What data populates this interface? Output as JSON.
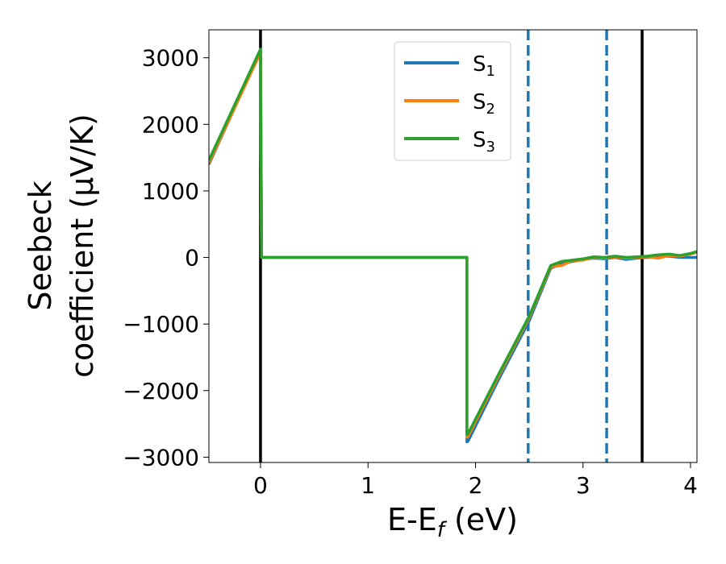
{
  "chart_data": {
    "type": "line",
    "xlabel": {
      "prefix": "E-E",
      "subscript": "f",
      "suffix": " (eV)"
    },
    "ylabel": {
      "line1": "Seebeck",
      "line2": "coefficient  (μV/K)"
    },
    "xlim": [
      -0.48,
      4.06
    ],
    "ylim": [
      -3080,
      3420
    ],
    "xticks": [
      0,
      1,
      2,
      3,
      4
    ],
    "yticks": [
      3000,
      2000,
      1000,
      0,
      -1000,
      -2000,
      -3000
    ],
    "ytick_labels": [
      "3000",
      "2000",
      "1000",
      "0",
      "−1000",
      "−2000",
      "−3000"
    ],
    "grid": false,
    "legend": {
      "position": "top-right",
      "entries": [
        {
          "base": "S",
          "sub": "1",
          "color": "#1f77b4"
        },
        {
          "base": "S",
          "sub": "2",
          "color": "#ff7f0e"
        },
        {
          "base": "S",
          "sub": "3",
          "color": "#2ca02c"
        }
      ]
    },
    "series": [
      {
        "name": "S1",
        "color": "#1f77b4",
        "x": [
          -0.48,
          0.0,
          0.01,
          0.02,
          1.92,
          1.92,
          1.93,
          2.2,
          2.5,
          2.7,
          2.8,
          2.9,
          3.0,
          3.1,
          3.2,
          3.3,
          3.4,
          3.5,
          3.6,
          3.7,
          3.8,
          3.9,
          4.0,
          4.06
        ],
        "y": [
          1400,
          3100,
          0,
          0,
          0,
          -2770,
          -2760,
          -1880,
          -950,
          -160,
          -100,
          -60,
          -30,
          -10,
          -20,
          0,
          -30,
          -10,
          0,
          10,
          20,
          0,
          0,
          0
        ]
      },
      {
        "name": "S2",
        "color": "#ff7f0e",
        "x": [
          -0.48,
          0.0,
          0.01,
          0.02,
          1.92,
          1.92,
          1.93,
          2.2,
          2.5,
          2.7,
          2.8,
          2.9,
          3.0,
          3.1,
          3.2,
          3.3,
          3.4,
          3.5,
          3.6,
          3.7,
          3.8,
          3.9,
          4.0,
          4.06
        ],
        "y": [
          1420,
          3080,
          0,
          0,
          0,
          -2700,
          -2690,
          -1830,
          -900,
          -140,
          -120,
          -50,
          -40,
          0,
          -10,
          10,
          -10,
          0,
          10,
          -10,
          30,
          20,
          50,
          80
        ]
      },
      {
        "name": "S3",
        "color": "#2ca02c",
        "x": [
          -0.48,
          0.0,
          0.01,
          0.02,
          1.92,
          1.92,
          1.93,
          2.2,
          2.5,
          2.7,
          2.8,
          2.9,
          3.0,
          3.1,
          3.2,
          3.3,
          3.4,
          3.5,
          3.6,
          3.7,
          3.8,
          3.9,
          4.0,
          4.06
        ],
        "y": [
          1460,
          3130,
          0,
          0,
          0,
          -2660,
          -2650,
          -1800,
          -880,
          -120,
          -60,
          -40,
          -20,
          10,
          0,
          20,
          0,
          10,
          20,
          40,
          50,
          30,
          60,
          90
        ]
      }
    ],
    "vertical_lines": [
      {
        "x": 0.0,
        "style": "solid",
        "color": "#000000"
      },
      {
        "x": 2.49,
        "style": "dashed",
        "color": "#1f77b4"
      },
      {
        "x": 3.22,
        "style": "dashed",
        "color": "#1f77b4"
      },
      {
        "x": 3.55,
        "style": "solid",
        "color": "#000000"
      }
    ]
  }
}
